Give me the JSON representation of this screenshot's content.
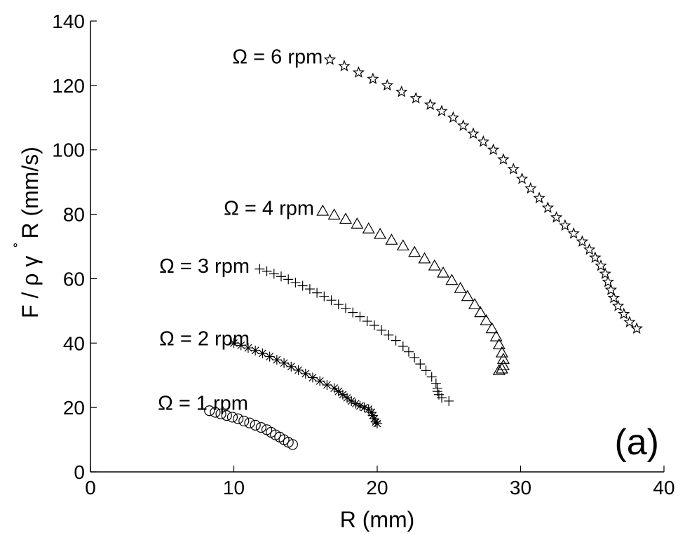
{
  "chart_data": {
    "type": "scatter",
    "title": "",
    "xlabel": "R (mm)",
    "ylabel": "F / ρ γ ̊R (mm/s)",
    "ylabel_parts": {
      "main": "F / ρ γ",
      "ring": "˚",
      "tail": "R (mm/s)"
    },
    "xlim": [
      0,
      40
    ],
    "ylim": [
      0,
      140
    ],
    "xticks": [
      0,
      10,
      20,
      30,
      40
    ],
    "yticks": [
      0,
      20,
      40,
      60,
      80,
      100,
      120,
      140
    ],
    "grid": false,
    "panel_label": "(a)",
    "series": [
      {
        "name": "Ω = 1 rpm",
        "marker": "circle",
        "label_anchor": [
          11,
          21.5
        ],
        "x": [
          8.3,
          8.7,
          9.1,
          9.5,
          9.9,
          10.3,
          10.7,
          11.1,
          11.5,
          11.9,
          12.3,
          12.6,
          12.9,
          13.2,
          13.5,
          13.8,
          14.1
        ],
        "y": [
          19,
          18.5,
          18,
          17.5,
          17,
          16.5,
          15.8,
          15.2,
          14.5,
          13.8,
          13.1,
          12.3,
          11.5,
          10.8,
          10,
          9.2,
          8.5
        ]
      },
      {
        "name": "Ω = 2 rpm",
        "marker": "asterisk",
        "label_anchor": [
          11.1,
          41.5
        ],
        "x": [
          10,
          10.5,
          11,
          11.5,
          12,
          12.5,
          13,
          13.5,
          14,
          14.5,
          15,
          15.5,
          16,
          16.5,
          17,
          17.3,
          17.6,
          17.9,
          18.2,
          18.5,
          18.8,
          19.1,
          19.4,
          19.6,
          19.7,
          19.8,
          19.9,
          20
        ],
        "y": [
          40,
          39.3,
          38.5,
          37.7,
          36.8,
          35.8,
          34.8,
          33.8,
          32.7,
          31.6,
          30.5,
          29.3,
          28.2,
          27,
          26,
          25,
          24,
          23,
          22,
          21.2,
          20.5,
          20,
          19.5,
          18.5,
          17.5,
          16.5,
          15.5,
          15
        ]
      },
      {
        "name": "Ω = 3 rpm",
        "marker": "plus",
        "label_anchor": [
          11.1,
          64
        ],
        "x": [
          11.8,
          12.3,
          12.8,
          13.3,
          13.8,
          14.3,
          14.8,
          15.3,
          15.8,
          16.3,
          16.8,
          17.3,
          17.8,
          18.3,
          18.8,
          19.3,
          19.8,
          20.3,
          20.8,
          21.3,
          21.8,
          22.2,
          22.6,
          23,
          23.4,
          23.8,
          24.1,
          24.2,
          24.2,
          24.3,
          24.5,
          25
        ],
        "y": [
          63,
          62.3,
          61.5,
          60.7,
          59.8,
          58.8,
          57.8,
          56.8,
          55.6,
          54.5,
          53.3,
          52,
          50.8,
          49.5,
          48.2,
          46.8,
          45.5,
          44,
          42.5,
          40.8,
          39,
          37.3,
          35.5,
          33.5,
          31.5,
          29.5,
          27.5,
          26,
          25,
          24,
          23,
          22
        ]
      },
      {
        "name": "Ω = 4 rpm",
        "marker": "triangle",
        "label_anchor": [
          15.6,
          82
        ],
        "x": [
          16.2,
          17,
          17.8,
          18.6,
          19.4,
          20.2,
          21,
          21.8,
          22.6,
          23.3,
          24,
          24.6,
          25.2,
          25.8,
          26.3,
          26.8,
          27.2,
          27.6,
          28,
          28.3,
          28.5,
          28.7,
          28.8,
          28.8,
          28.7,
          28.5
        ],
        "y": [
          81,
          79.8,
          78.5,
          77,
          75.5,
          73.8,
          72,
          70.2,
          68.2,
          66.2,
          64,
          61.8,
          59.5,
          57,
          54.5,
          52,
          49.5,
          47,
          44.5,
          42,
          39.5,
          37,
          35,
          33,
          32,
          31.5
        ]
      },
      {
        "name": "Ω = 6 rpm",
        "marker": "star",
        "label_anchor": [
          16.2,
          129
        ],
        "x": [
          16.7,
          17.7,
          18.7,
          19.7,
          20.7,
          21.7,
          22.7,
          23.7,
          24.5,
          25.3,
          26,
          26.7,
          27.4,
          28.1,
          28.8,
          29.5,
          30.1,
          30.7,
          31.3,
          31.9,
          32.5,
          33.1,
          33.7,
          34.3,
          34.8,
          35.2,
          35.6,
          35.9,
          36.1,
          36.3,
          36.5,
          36.8,
          37.2,
          37.6,
          38.1
        ],
        "y": [
          128,
          126,
          124,
          122,
          120,
          118,
          116,
          114,
          112,
          110,
          107.5,
          105,
          102.5,
          100,
          97,
          94,
          91,
          88,
          85,
          82,
          79,
          76.5,
          74,
          71.5,
          69,
          66.5,
          64,
          61.5,
          59,
          56.5,
          54,
          51.5,
          49,
          46.5,
          44.5
        ]
      }
    ]
  }
}
